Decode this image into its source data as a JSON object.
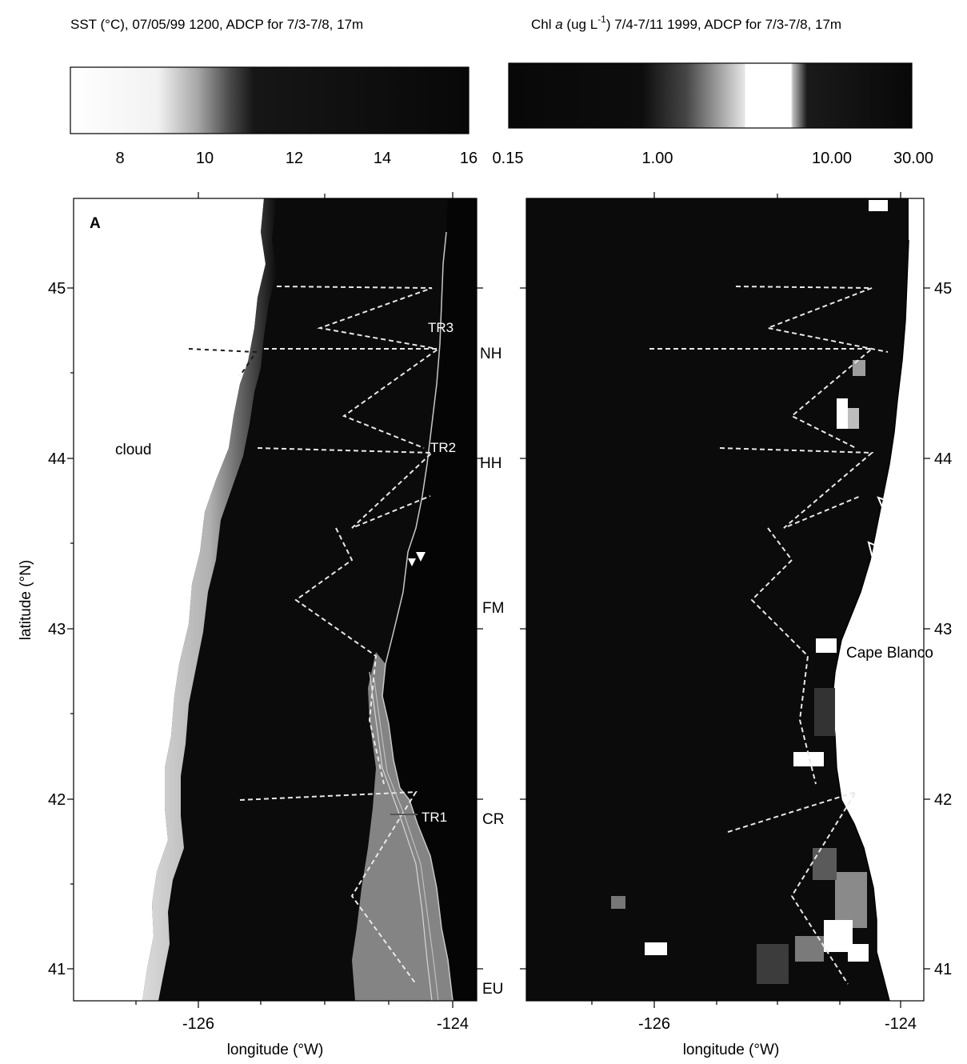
{
  "left": {
    "title": "SST (°C), 07/05/99 1200, ADCP for 7/3-7/8, 17m",
    "colorbar_ticks": [
      "8",
      "10",
      "12",
      "14",
      "16"
    ],
    "panel_letter": "A",
    "cloud_label": "cloud",
    "transects": [
      "TR3",
      "TR2",
      "TR1"
    ],
    "stations": [
      "NH",
      "HH",
      "FM",
      "CR",
      "EU"
    ]
  },
  "right": {
    "title_prefix": "Chl ",
    "title_italic": "a",
    "title_mid": " (ug L",
    "title_sup": "-1",
    "title_suffix": ") 7/4-7/11 1999, ADCP for 7/3-7/8, 17m",
    "colorbar_ticks": [
      "0.15",
      "1.00",
      "10.00",
      "30.00"
    ],
    "place_label": "Cape Blanco"
  },
  "axes": {
    "ylabel": "latitude (°N)",
    "xlabel": "longitude (°W)",
    "lat_ticks": [
      "45",
      "44",
      "43",
      "42",
      "41"
    ],
    "lon_ticks": [
      "-126",
      "-124"
    ]
  },
  "colors": {
    "ocean": "#0b0b0b",
    "cloud": "#ffffff",
    "coast_shelf": "#9a9a9a",
    "vectors": "#e8e8e8"
  },
  "icons": [
    "tide-gauge-flag-icon"
  ]
}
